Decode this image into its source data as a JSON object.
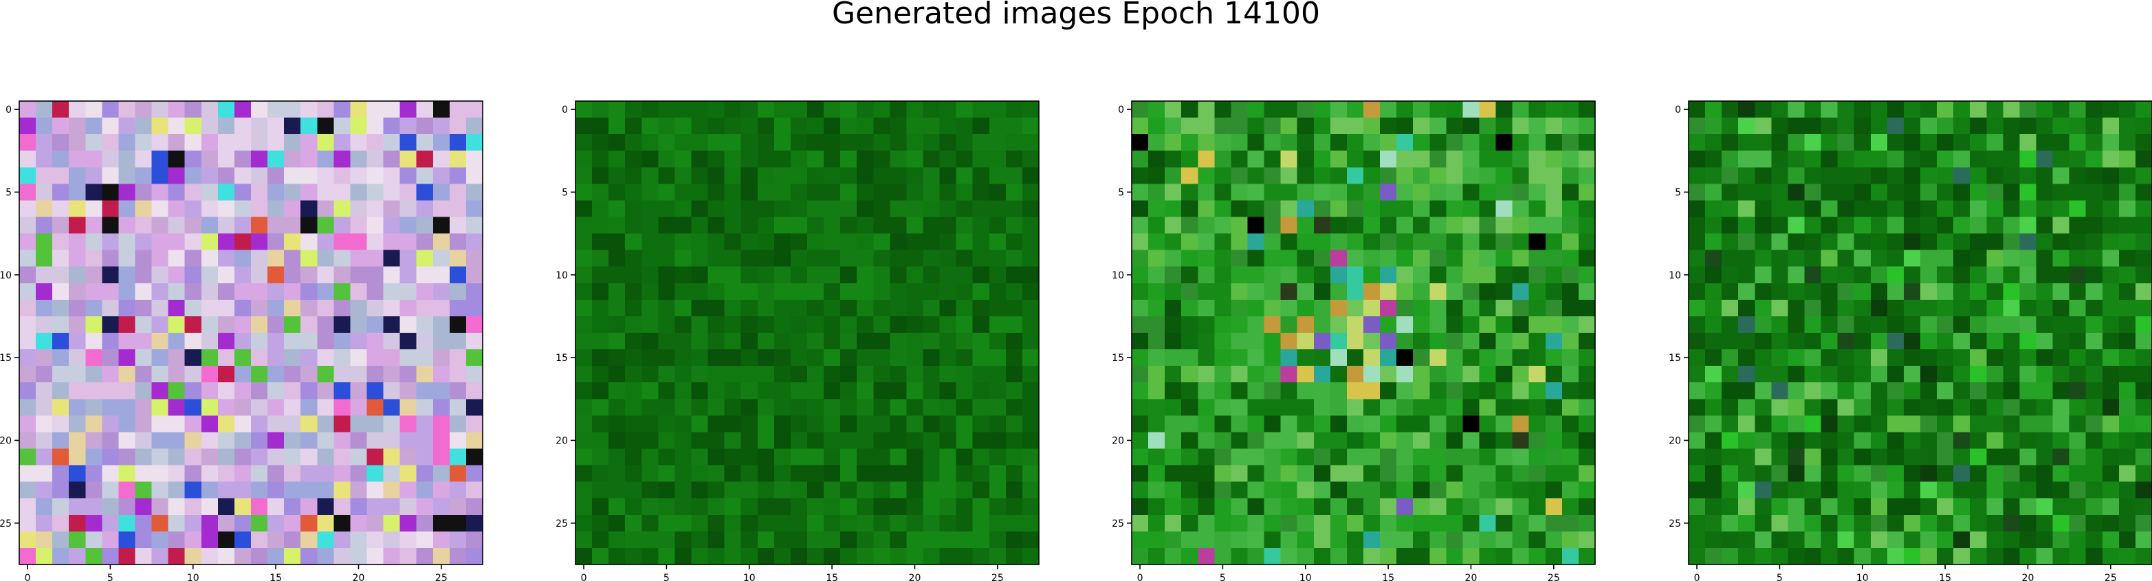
{
  "figure": {
    "title": "Generated images Epoch 14100"
  },
  "palette": {
    "panel1": [
      "#c9a6d6",
      "#e6d2ea",
      "#a38be0",
      "#d4c7e2",
      "#b48fd3",
      "#c0a4e4",
      "#e0bde2",
      "#9fa8dc",
      "#ede1ee",
      "#d8a7e4",
      "#aab7d3",
      "#c7cfdf"
    ],
    "panel1_accents": [
      "#e9e47a",
      "#3fe0de",
      "#f26bd1",
      "#1a1a52",
      "#2b4fd8",
      "#c21c4d",
      "#111111",
      "#54c23a",
      "#d6f26a",
      "#a32bd0",
      "#e6d39f",
      "#e25a38"
    ],
    "green_dark": [
      "#0a5a0a",
      "#0d6b0d",
      "#107a10",
      "#0b620b",
      "#137d13",
      "#0e6f0e",
      "#095209",
      "#148714"
    ],
    "green_bright": [
      "#1f9f1f",
      "#37ac37",
      "#25a325",
      "#3fb23f",
      "#2f8f2f",
      "#47b847",
      "#168c16",
      "#5bbd42",
      "#2a9c2a",
      "#6fc45a"
    ],
    "panel3_accents": [
      "#b93e9d",
      "#d8c44a",
      "#29a89a",
      "#9fdfbd",
      "#c59a3a",
      "#2a3a1a",
      "#000000",
      "#c4d86a",
      "#7a5dc4",
      "#35c9a0"
    ],
    "panel4_accents": [
      "#29c229",
      "#1a4a1a",
      "#2a6b5a",
      "#4bd14b",
      "#0c3d0c"
    ]
  },
  "chart_data": [
    {
      "type": "heatmap",
      "title": "",
      "xlabel": "",
      "ylabel": "",
      "grid": false,
      "rows": 28,
      "cols": 28,
      "xlim": [
        -0.5,
        27.5
      ],
      "ylim": [
        27.5,
        -0.5
      ],
      "xticks": [
        0,
        5,
        10,
        15,
        20,
        25
      ],
      "yticks": [
        0,
        5,
        10,
        15,
        20,
        25
      ],
      "xticklabels": [
        "0",
        "5",
        "10",
        "15",
        "20",
        "25"
      ],
      "yticklabels": [
        "0",
        "5",
        "10",
        "15",
        "20",
        "25"
      ]
    },
    {
      "type": "heatmap",
      "title": "",
      "xlabel": "",
      "ylabel": "",
      "grid": false,
      "rows": 28,
      "cols": 28,
      "xlim": [
        -0.5,
        27.5
      ],
      "ylim": [
        27.5,
        -0.5
      ],
      "xticks": [
        0,
        5,
        10,
        15,
        20,
        25
      ],
      "yticks": [
        0,
        5,
        10,
        15,
        20,
        25
      ],
      "xticklabels": [
        "0",
        "5",
        "10",
        "15",
        "20",
        "25"
      ],
      "yticklabels": [
        "0",
        "5",
        "10",
        "15",
        "20",
        "25"
      ]
    },
    {
      "type": "heatmap",
      "title": "",
      "xlabel": "",
      "ylabel": "",
      "grid": false,
      "rows": 28,
      "cols": 28,
      "xlim": [
        -0.5,
        27.5
      ],
      "ylim": [
        27.5,
        -0.5
      ],
      "xticks": [
        0,
        5,
        10,
        15,
        20,
        25
      ],
      "yticks": [
        0,
        5,
        10,
        15,
        20,
        25
      ],
      "xticklabels": [
        "0",
        "5",
        "10",
        "15",
        "20",
        "25"
      ],
      "yticklabels": [
        "0",
        "5",
        "10",
        "15",
        "20",
        "25"
      ]
    },
    {
      "type": "heatmap",
      "title": "",
      "xlabel": "",
      "ylabel": "",
      "grid": false,
      "rows": 28,
      "cols": 28,
      "xlim": [
        -0.5,
        27.5
      ],
      "ylim": [
        27.5,
        -0.5
      ],
      "xticks": [
        0,
        5,
        10,
        15,
        20,
        25
      ],
      "yticks": [
        0,
        5,
        10,
        15,
        20,
        25
      ],
      "xticklabels": [
        "0",
        "5",
        "10",
        "15",
        "20",
        "25"
      ],
      "yticklabels": [
        "0",
        "5",
        "10",
        "15",
        "20",
        "25"
      ]
    }
  ]
}
